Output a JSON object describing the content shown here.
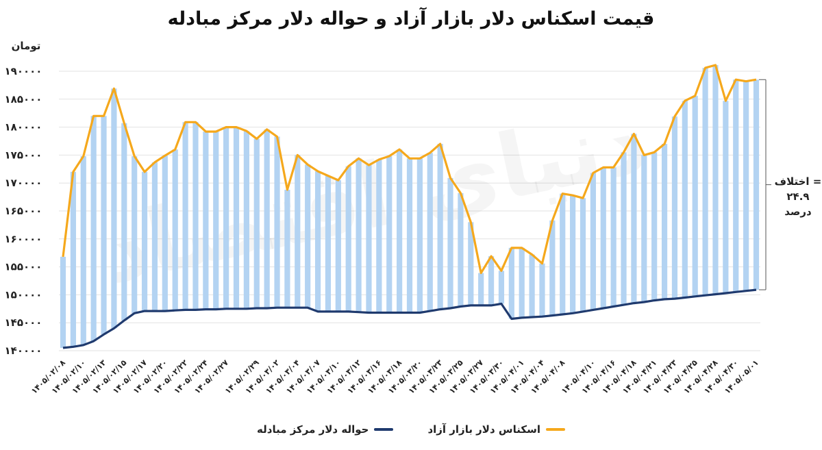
{
  "chart_data": {
    "type": "bar",
    "title": "قیمت اسکناس دلار بازار آزاد و حواله دلار مرکز مبادله",
    "ylabel": "تومان",
    "ylim": [
      140000,
      190000
    ],
    "yticks": [
      "۱۴۰۰۰۰",
      "۱۴۵۰۰۰",
      "۱۵۰۰۰۰",
      "۱۵۵۰۰۰",
      "۱۶۰۰۰۰",
      "۱۶۵۰۰۰",
      "۱۷۰۰۰۰",
      "۱۷۵۰۰۰",
      "۱۸۰۰۰۰",
      "۱۸۵۰۰۰",
      "۱۹۰۰۰۰"
    ],
    "grid": true,
    "legend_position": "bottom",
    "x_tick_labels": [
      "۱۴۰۵/۰۲/۰۸",
      "۱۴۰۵/۰۲/۱۰",
      "۱۴۰۵/۰۲/۱۳",
      "۱۴۰۵/۰۲/۱۵",
      "۱۴۰۵/۰۲/۱۷",
      "۱۴۰۵/۰۲/۲۰",
      "۱۴۰۵/۰۲/۲۲",
      "۱۴۰۵/۰۲/۲۴",
      "۱۴۰۵/۰۲/۲۷",
      "۱۴۰۵/۰۲/۲۹",
      "۱۴۰۵/۰۳/۰۲",
      "۱۴۰۵/۰۳/۰۴",
      "۱۴۰۵/۰۳/۰۷",
      "۱۴۰۵/۰۳/۱۰",
      "۱۴۰۵/۰۳/۱۲",
      "۱۴۰۵/۰۳/۱۶",
      "۱۴۰۵/۰۳/۱۸",
      "۱۴۰۵/۰۳/۲۰",
      "۱۴۰۵/۰۳/۲۳",
      "۱۴۰۵/۰۳/۲۵",
      "۱۴۰۵/۰۳/۲۷",
      "۱۴۰۵/۰۳/۳۰",
      "۱۴۰۵/۰۴/۰۱",
      "۱۴۰۵/۰۴/۰۴",
      "۱۴۰۵/۰۴/۰۸",
      "۱۴۰۵/۰۴/۱۰",
      "۱۴۰۵/۰۴/۱۶",
      "۱۴۰۵/۰۴/۱۸",
      "۱۴۰۵/۰۴/۲۱",
      "۱۴۰۵/۰۴/۲۳",
      "۱۴۰۵/۰۴/۲۵",
      "۱۴۰۵/۰۴/۲۸",
      "۱۴۰۵/۰۴/۳۰",
      "۱۴۰۵/۰۵/۰۱"
    ],
    "series": [
      {
        "name": "اسکناس دلار بازار آزاد",
        "color": "#f5a81c",
        "values": [
          156800,
          172000,
          174800,
          182000,
          182000,
          186900,
          180700,
          174800,
          172000,
          173700,
          174900,
          176000,
          180900,
          180900,
          179200,
          179200,
          180000,
          180000,
          179300,
          177900,
          179600,
          178300,
          168800,
          175000,
          173300,
          172100,
          171300,
          170500,
          173000,
          174400,
          173200,
          174200,
          174800,
          176000,
          174400,
          174400,
          175400,
          177000,
          170900,
          168200,
          163000,
          153900,
          156900,
          154300,
          158400,
          158400,
          157200,
          155600,
          163300,
          168100,
          167800,
          167300,
          171800,
          172800,
          172800,
          175500,
          178800,
          175000,
          175500,
          177000,
          181900,
          184700,
          185600,
          190600,
          191100,
          184700,
          188500,
          188200,
          188500
        ]
      },
      {
        "name": "حواله دلار مرکز مبادله",
        "color": "#1f3a6e",
        "values": [
          140500,
          140700,
          141000,
          141700,
          142900,
          144000,
          145400,
          146700,
          147100,
          147100,
          147100,
          147200,
          147300,
          147300,
          147400,
          147400,
          147500,
          147500,
          147500,
          147600,
          147600,
          147700,
          147700,
          147700,
          147700,
          147000,
          147000,
          147000,
          147000,
          146900,
          146800,
          146800,
          146800,
          146800,
          146800,
          146800,
          147100,
          147400,
          147600,
          147900,
          148100,
          148100,
          148100,
          148400,
          145700,
          145900,
          146000,
          146100,
          146300,
          146500,
          146700,
          147000,
          147300,
          147600,
          147900,
          148200,
          148500,
          148700,
          149000,
          149200,
          149300,
          149500,
          149700,
          149900,
          150100,
          150300,
          150500,
          150700,
          150900
        ]
      }
    ],
    "annotation": {
      "line1": "اختلاف =",
      "line2": "۲۴.۹",
      "line3": "درصد"
    },
    "watermark": "دنیای اقتصاد"
  }
}
